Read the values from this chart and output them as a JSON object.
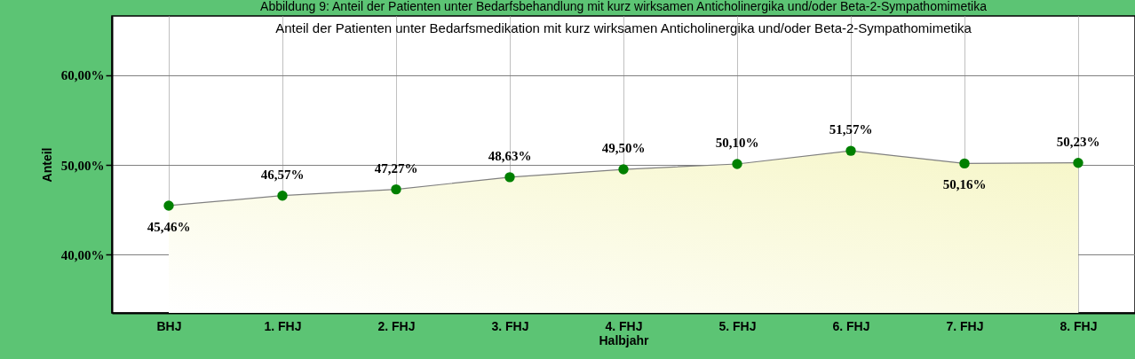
{
  "chart_data": {
    "type": "area",
    "title": "Abbildung 9: Anteil der Patienten unter Bedarfsbehandlung mit kurz wirksamen Anticholinergika und/oder Beta-2-Sympathomimetika",
    "subtitle": "Anteil der Patienten unter Bedarfsmedikation mit kurz wirksamen Anticholinergika und/oder Beta-2-Sympathomimetika",
    "xlabel": "Halbjahr",
    "ylabel": "Anteil",
    "categories": [
      "BHJ",
      "1. FHJ",
      "2. FHJ",
      "3. FHJ",
      "4. FHJ",
      "5. FHJ",
      "6. FHJ",
      "7. FHJ",
      "8. FHJ"
    ],
    "values": [
      45.46,
      46.57,
      47.27,
      48.63,
      49.5,
      50.1,
      51.57,
      50.16,
      50.23
    ],
    "value_labels": [
      "45,46%",
      "46,57%",
      "47,27%",
      "48,63%",
      "49,50%",
      "50,10%",
      "51,57%",
      "50,16%",
      "50,23%"
    ],
    "color": "#008000",
    "ylim": [
      33.5,
      66.6
    ],
    "yticks": [
      {
        "value": 40,
        "label": "40,00%"
      },
      {
        "value": 50,
        "label": "50,00%"
      },
      {
        "value": 60,
        "label": "60,00%"
      }
    ],
    "grid": true,
    "marker": "circle"
  }
}
